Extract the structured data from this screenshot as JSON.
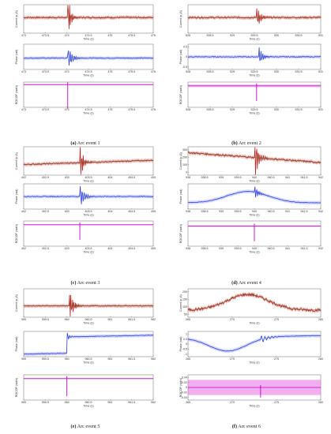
{
  "figure": {
    "events": [
      {
        "caption_label": "(a)",
        "caption_text": "Arc event 1",
        "xlim": [
          473,
          476
        ],
        "xticks": [
          "473",
          "473.5",
          "474",
          "474.5",
          "475",
          "475.5",
          "476"
        ],
        "current": {
          "ylabel": "Current Ip (A)",
          "yticks": [],
          "xlabel": "Time (s)",
          "base": 0.55,
          "noise": 0.05,
          "trend": 0.0,
          "burst_x": 474.02,
          "burst_amp": 0.9,
          "burst_decay": 0.06,
          "burst_freq": 9
        },
        "phase": {
          "ylabel": "Phase (rad)",
          "yticks": [],
          "xlabel": "Time (s)",
          "base": 0.45,
          "noise": 0.03,
          "trend": 0.0,
          "burst_x": 474.02,
          "burst_amp": 0.45,
          "burst_decay": 0.1,
          "burst_freq": 7
        },
        "rocop": {
          "ylabel": "ROCOP (rad/s)",
          "yticks": [],
          "xlabel": "Time (s)",
          "base": 0.9,
          "spike_x": 474.02,
          "spike_depth": 0.95,
          "band": 0.01
        }
      },
      {
        "caption_label": "(b)",
        "caption_text": "Arc event 2",
        "xlim": [
          528,
          531
        ],
        "xticks": [
          "528",
          "528.5",
          "529",
          "529.5",
          "530",
          "530.5",
          "531"
        ],
        "current": {
          "ylabel": "Current Ip (A)",
          "yticks": [],
          "xlabel": "Time (s)",
          "base": 0.55,
          "noise": 0.05,
          "trend": 0.0,
          "burst_x": 529.55,
          "burst_amp": 0.45,
          "burst_decay": 0.08,
          "burst_freq": 9
        },
        "phase": {
          "ylabel": "Phase (rad)",
          "yticks": [
            "0.5",
            "0",
            "-0.5"
          ],
          "xlabel": "Time (s)",
          "base": 0.5,
          "noise": 0.03,
          "trend": 0.0,
          "burst_x": 529.6,
          "burst_amp": 0.4,
          "burst_decay": 0.08,
          "burst_freq": 8
        },
        "rocop": {
          "ylabel": "ROCOP (rad/s)",
          "yticks": [],
          "xlabel": "Time (s)",
          "base": 0.85,
          "spike_x": 529.55,
          "spike_depth": 0.6,
          "band": 0.05
        }
      },
      {
        "caption_label": "(c)",
        "caption_text": "Arc event 3",
        "xlim": [
          402,
          405
        ],
        "xticks": [
          "402",
          "402.5",
          "403",
          "403.5",
          "404",
          "404.5",
          "405"
        ],
        "current": {
          "ylabel": "Current Ip (A)",
          "yticks": [],
          "xlabel": "Time (s)",
          "base": 0.45,
          "noise": 0.04,
          "trend": 0.15,
          "burst_x": 403.3,
          "burst_amp": 0.75,
          "burst_decay": 0.07,
          "burst_freq": 9
        },
        "phase": {
          "ylabel": "Phase (rad)",
          "yticks": [],
          "xlabel": "Time (s)",
          "base": 0.5,
          "noise": 0.03,
          "trend": 0.0,
          "burst_x": 403.3,
          "burst_amp": 0.45,
          "burst_decay": 0.1,
          "burst_freq": 7
        },
        "rocop": {
          "ylabel": "ROCOP (rad/s)",
          "yticks": [],
          "xlabel": "Time (s)",
          "base": 0.85,
          "spike_x": 403.3,
          "spike_depth": 0.6,
          "band": 0.01
        }
      },
      {
        "caption_label": "(d)",
        "caption_text": "Arc event 4",
        "xlim": [
          938,
          942
        ],
        "xticks": [
          "938",
          "938.5",
          "939",
          "939.5",
          "940",
          "940.5",
          "941",
          "941.5",
          "942"
        ],
        "current": {
          "ylabel": "Current Ip (A)",
          "yticks": [
            "300",
            "200",
            "100",
            "0"
          ],
          "xlabel": "Time (s)",
          "base": 0.62,
          "noise": 0.06,
          "trend": -0.35,
          "burst_x": 940.0,
          "burst_amp": 0.9,
          "burst_decay": 0.08,
          "burst_freq": 8
        },
        "phase": {
          "ylabel": "Phase (rad)",
          "yticks": [],
          "xlabel": "Time (s)",
          "base": 0.25,
          "noise": 0.02,
          "trend": 0.0,
          "hump": 0.45,
          "burst_x": 940.0,
          "burst_amp": 0.3,
          "burst_decay": 0.08,
          "burst_freq": 8
        },
        "rocop": {
          "ylabel": "ROCOP (rad/s)",
          "yticks": [],
          "xlabel": "Time (s)",
          "base": 0.8,
          "spike_x": 940.0,
          "spike_depth": 0.6,
          "band": 0.01
        }
      },
      {
        "caption_label": "(e)",
        "caption_text": "Arc event 5",
        "xlim": [
          959,
          962
        ],
        "xticks": [
          "959",
          "959.5",
          "960",
          "960.5",
          "961",
          "961.5",
          "962"
        ],
        "current": {
          "ylabel": "Current Ip (A)",
          "yticks": [],
          "xlabel": "Time (s)",
          "base": 0.4,
          "noise": 0.03,
          "trend": 0.0,
          "burst_x": 960.05,
          "burst_amp": 0.7,
          "burst_decay": 0.08,
          "burst_freq": 9
        },
        "phase": {
          "ylabel": "Phase (rad)",
          "yticks": [],
          "xlabel": "Time (s)",
          "base": 0.15,
          "noise": 0.02,
          "trend": 0.1,
          "step_x": 960.0,
          "step_to": 0.8,
          "burst_x": 960.0,
          "burst_amp": 0.2,
          "burst_decay": 0.05,
          "burst_freq": 6
        },
        "rocop": {
          "ylabel": "ROCOP (rad/s)",
          "yticks": [],
          "xlabel": "Time (s)",
          "base": 0.85,
          "spike_x": 960.0,
          "spike_depth": 0.7,
          "band": 0.01
        }
      },
      {
        "caption_label": "(f)",
        "caption_text": "Arc event 6",
        "xlim": [
          265,
          280
        ],
        "xticks": [
          "265",
          "270",
          "275",
          "280"
        ],
        "current": {
          "ylabel": "Current Ip (A)",
          "yticks": [
            "200",
            "150",
            "100",
            "50"
          ],
          "xlabel": "Time (s)",
          "base": 0.25,
          "noise": 0.1,
          "trend": 0.0,
          "hump": 0.55,
          "burst_x": 271.3,
          "burst_amp": 0.0,
          "burst_decay": 0.1,
          "burst_freq": 5
        },
        "phase": {
          "ylabel": "Phase (rad)",
          "yticks": [
            "1",
            "0.5",
            "0",
            "-0.5",
            "-1"
          ],
          "xlabel": "Time (s)",
          "base": 0.75,
          "noise": 0.015,
          "trend": 0.0,
          "valley": 0.55,
          "burst_x": 273.2,
          "burst_amp": 0.15,
          "burst_decay": 0.15,
          "burst_freq": 4
        },
        "rocop": {
          "ylabel": "ROCOP (rad/s)",
          "yticks": [
            "0.04",
            "0.02",
            "0",
            "-0.02",
            "-0.04"
          ],
          "xlabel": "Time (s)",
          "base": 0.5,
          "spike_x": 273.2,
          "spike_depth": 0.4,
          "band": 0.3
        }
      }
    ],
    "colors": {
      "current_line": "#b3261e",
      "current_fit": "#2e7d32",
      "current_band": "#e57373",
      "phase_line": "#2b3fd6",
      "phase_band": "#9fa8ff",
      "rocop_line": "#c400c4",
      "rocop_band": "#e66be6",
      "axis": "#444444"
    }
  },
  "chart_data": [
    {
      "type": "line",
      "title": "",
      "subplot": "(a) Arc event 1 – current",
      "xlabel": "Time (s)",
      "ylabel": "Current Ip (A)",
      "xlim": [
        473,
        476
      ]
    },
    {
      "type": "line",
      "title": "",
      "subplot": "(a) Arc event 1 – phase",
      "xlabel": "Time (s)",
      "ylabel": "Phase (rad)",
      "xlim": [
        473,
        476
      ]
    },
    {
      "type": "line",
      "title": "",
      "subplot": "(a) Arc event 1 – ROCOP",
      "xlabel": "",
      "ylabel": "ROCOP (rad/s)",
      "xlim": [
        473,
        476
      ]
    },
    {
      "type": "line",
      "title": "",
      "subplot": "(b) Arc event 2 – current",
      "xlabel": "Time (s)",
      "ylabel": "Current Ip (A)",
      "xlim": [
        528,
        531
      ]
    },
    {
      "type": "line",
      "title": "",
      "subplot": "(b) Arc event 2 – phase",
      "xlabel": "Time (s)",
      "ylabel": "Phase (rad)",
      "xlim": [
        528,
        531
      ],
      "ylim": [
        -0.5,
        0.5
      ]
    },
    {
      "type": "line",
      "title": "",
      "subplot": "(b) Arc event 2 – ROCOP",
      "xlabel": "Time (s)",
      "ylabel": "ROCOP (rad/s)",
      "xlim": [
        528,
        531
      ]
    },
    {
      "type": "line",
      "title": "",
      "subplot": "(c) Arc event 3 – current",
      "xlabel": "Time (s)",
      "ylabel": "Current Ip (A)",
      "xlim": [
        402,
        405
      ]
    },
    {
      "type": "line",
      "title": "",
      "subplot": "(c) Arc event 3 – phase",
      "xlabel": "Time (s)",
      "ylabel": "Phase (rad)",
      "xlim": [
        402,
        405
      ]
    },
    {
      "type": "line",
      "title": "",
      "subplot": "(c) Arc event 3 – ROCOP",
      "xlabel": "Time (s)",
      "ylabel": "ROCOP (rad/s)",
      "xlim": [
        402,
        405
      ]
    },
    {
      "type": "line",
      "title": "",
      "subplot": "(d) Arc event 4 – current",
      "xlabel": "Time (s)",
      "ylabel": "Current Ip (A)",
      "xlim": [
        938,
        942
      ],
      "ylim": [
        0,
        300
      ]
    },
    {
      "type": "line",
      "title": "",
      "subplot": "(d) Arc event 4 – phase",
      "xlabel": "Time (s)",
      "ylabel": "Phase (rad)",
      "xlim": [
        938,
        942
      ]
    },
    {
      "type": "line",
      "title": "",
      "subplot": "(d) Arc event 4 – ROCOP",
      "xlabel": "Time (s)",
      "ylabel": "ROCOP (rad/s)",
      "xlim": [
        938,
        942
      ]
    },
    {
      "type": "line",
      "title": "",
      "subplot": "(e) Arc event 5 – current",
      "xlabel": "Time (s)",
      "ylabel": "Current Ip (A)",
      "xlim": [
        959,
        962
      ]
    },
    {
      "type": "line",
      "title": "",
      "subplot": "(e) Arc event 5 – phase",
      "xlabel": "Time (s)",
      "ylabel": "Phase (rad)",
      "xlim": [
        959,
        962
      ]
    },
    {
      "type": "line",
      "title": "",
      "subplot": "(e) Arc event 5 – ROCOP",
      "xlabel": "Time (s)",
      "ylabel": "ROCOP (rad/s)",
      "xlim": [
        959,
        962
      ]
    },
    {
      "type": "line",
      "title": "",
      "subplot": "(f) Arc event 6 – current",
      "xlabel": "Time (s)",
      "ylabel": "Current Ip (A)",
      "xlim": [
        265,
        280
      ],
      "ylim": [
        50,
        200
      ]
    },
    {
      "type": "line",
      "title": "",
      "subplot": "(f) Arc event 6 – phase",
      "xlabel": "Time (s)",
      "ylabel": "Phase (rad)",
      "xlim": [
        265,
        280
      ],
      "ylim": [
        -1,
        1
      ]
    },
    {
      "type": "line",
      "title": "",
      "subplot": "(f) Arc event 6 – ROCOP",
      "xlabel": "Time (s)",
      "ylabel": "ROCOP (rad/s)",
      "xlim": [
        265,
        280
      ],
      "ylim": [
        -0.04,
        0.04
      ]
    }
  ]
}
